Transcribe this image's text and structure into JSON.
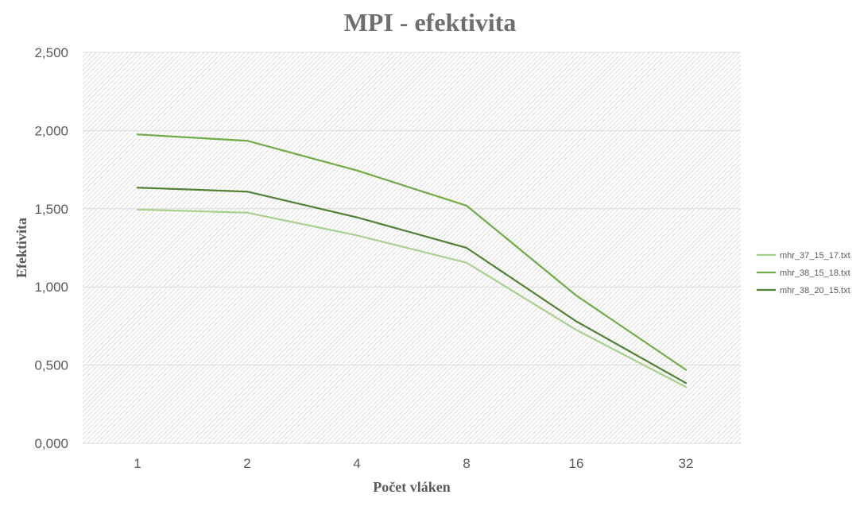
{
  "chart_data": {
    "type": "line",
    "title": "MPI - efektivita",
    "xlabel": "Počet vláken",
    "ylabel": "Efektivita",
    "categories": [
      "1",
      "2",
      "4",
      "8",
      "16",
      "32"
    ],
    "ylim": [
      0,
      2.5
    ],
    "yticks": [
      {
        "value": 0.0,
        "label": "0,000"
      },
      {
        "value": 0.5,
        "label": "0,500"
      },
      {
        "value": 1.0,
        "label": "1,000"
      },
      {
        "value": 1.5,
        "label": "1,500"
      },
      {
        "value": 2.0,
        "label": "2,000"
      },
      {
        "value": 2.5,
        "label": "2,500"
      }
    ],
    "grid": true,
    "legend_position": "right",
    "series": [
      {
        "name": "mhr_37_15_17.txt",
        "color": "#a9d18e",
        "values": [
          1.495,
          1.475,
          1.33,
          1.155,
          0.725,
          0.36
        ]
      },
      {
        "name": "mhr_38_15_18.txt",
        "color": "#70ad47",
        "values": [
          1.975,
          1.935,
          1.745,
          1.52,
          0.945,
          0.47
        ]
      },
      {
        "name": "mhr_38_20_15.txt",
        "color": "#548235",
        "values": [
          1.635,
          1.61,
          1.445,
          1.25,
          0.78,
          0.385
        ]
      }
    ]
  }
}
